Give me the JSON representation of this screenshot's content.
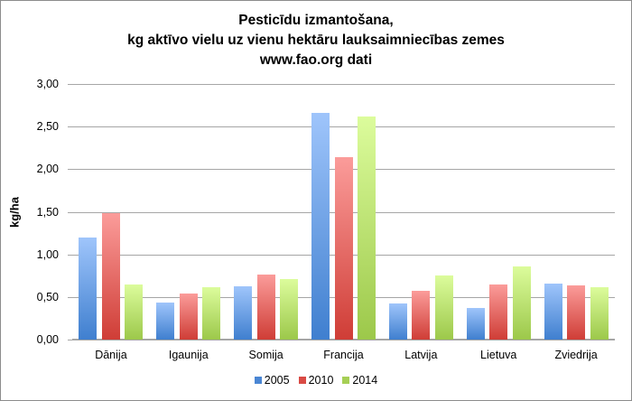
{
  "chart_data": {
    "type": "bar",
    "title": "Pesticīdu izmantošana,",
    "subtitle": "kg aktīvo vielu uz vienu hektāru lauksaimniecības zemes",
    "source_note": "www.fao.org dati",
    "title_lines": [
      "Pesticīdu izmantošana,",
      "kg aktīvo vielu uz vienu hektāru lauksaimniecības zemes",
      "www.fao.org dati"
    ],
    "xlabel": "",
    "ylabel": "kg/ha",
    "ylim": [
      0,
      3
    ],
    "yticks": [
      "0,00",
      "0,50",
      "1,00",
      "1,50",
      "2,00",
      "2,50",
      "3,00"
    ],
    "grid": true,
    "legend_position": "bottom",
    "categories": [
      "Dānija",
      "Igaunija",
      "Somija",
      "Francija",
      "Latvija",
      "Lietuva",
      "Zviedrija"
    ],
    "series": [
      {
        "name": "2005",
        "color": "#4a86d4",
        "values": [
          1.2,
          0.43,
          0.63,
          2.66,
          0.42,
          0.37,
          0.66
        ]
      },
      {
        "name": "2010",
        "color": "#d94a44",
        "values": [
          1.48,
          0.54,
          0.76,
          2.14,
          0.57,
          0.65,
          0.64
        ]
      },
      {
        "name": "2014",
        "color": "#a6cf55",
        "values": [
          0.65,
          0.61,
          0.71,
          2.62,
          0.75,
          0.86,
          0.62
        ]
      }
    ]
  }
}
